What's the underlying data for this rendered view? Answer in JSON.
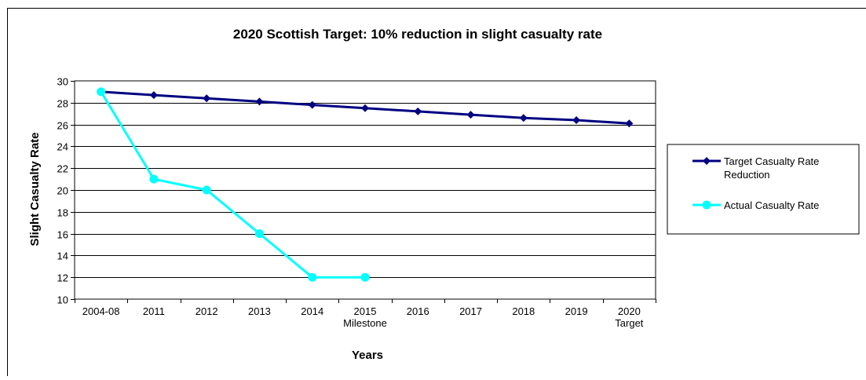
{
  "chart_data": {
    "type": "line",
    "title": "2020 Scottish Target: 10% reduction in slight casualty rate",
    "xlabel": "Years",
    "ylabel": "Slight Casualty Rate",
    "categories": [
      [
        "2004-08"
      ],
      [
        "2011"
      ],
      [
        "2012"
      ],
      [
        "2013"
      ],
      [
        "2014"
      ],
      [
        "2015",
        "Milestone"
      ],
      [
        "2016"
      ],
      [
        "2017"
      ],
      [
        "2018"
      ],
      [
        "2019"
      ],
      [
        "2020",
        "Target"
      ]
    ],
    "ylim": [
      10,
      30
    ],
    "yticks": [
      10,
      12,
      14,
      16,
      18,
      20,
      22,
      24,
      26,
      28,
      30
    ],
    "grid": true,
    "legend_position": "right",
    "series": [
      {
        "name": "Target Casualty Rate Reduction",
        "legend_lines": [
          "Target Casualty Rate",
          "Reduction"
        ],
        "color": "#000080",
        "marker": "diamond",
        "values": [
          29.0,
          28.7,
          28.4,
          28.1,
          27.8,
          27.5,
          27.2,
          26.9,
          26.6,
          26.4,
          26.1
        ]
      },
      {
        "name": "Actual Casualty Rate",
        "legend_lines": [
          "Actual Casualty Rate"
        ],
        "color": "#00FFFF",
        "marker": "circle",
        "values": [
          29,
          21,
          20,
          16,
          12,
          12,
          null,
          null,
          null,
          null,
          null
        ]
      }
    ]
  }
}
